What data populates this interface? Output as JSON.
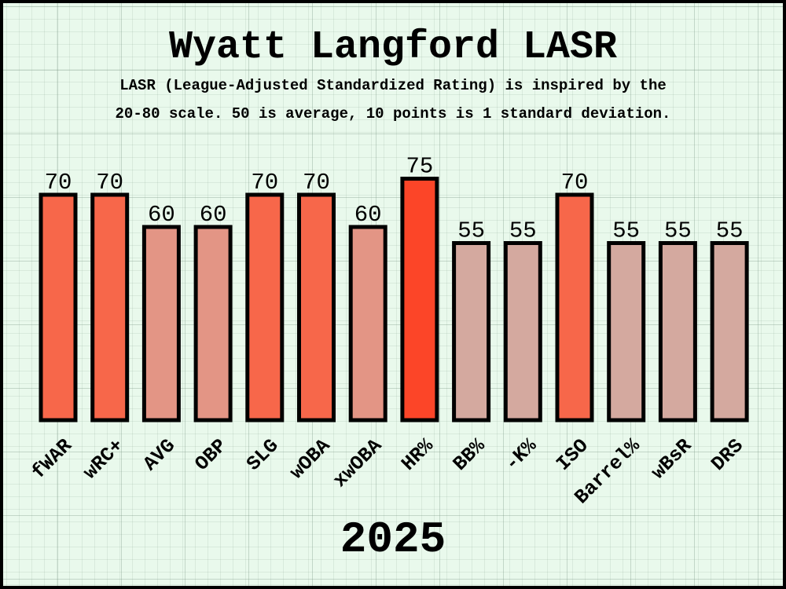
{
  "title": "Wyatt Langford LASR",
  "subtitle_line1": "LASR (League-Adjusted Standardized Rating) is inspired by the",
  "subtitle_line2": "20-80 scale. 50 is average, 10 points is 1 standard deviation.",
  "year": "2025",
  "chart_data": {
    "type": "bar",
    "title": "Wyatt Langford LASR",
    "categories": [
      "fWAR",
      "wRC+",
      "AVG",
      "OBP",
      "SLG",
      "wOBA",
      "xwOBA",
      "HR%",
      "BB%",
      "-K%",
      "ISO",
      "Barrel%",
      "wBsR",
      "DRS"
    ],
    "values": [
      70,
      70,
      60,
      60,
      70,
      70,
      60,
      75,
      55,
      55,
      70,
      55,
      55,
      55
    ],
    "ylim": [
      0,
      80
    ],
    "grid": true,
    "xlabel": "2025",
    "ylabel": "",
    "colors": {
      "55": "#d4a99f",
      "60": "#e39585",
      "70": "#f7674a",
      "75": "#fc4528"
    }
  }
}
